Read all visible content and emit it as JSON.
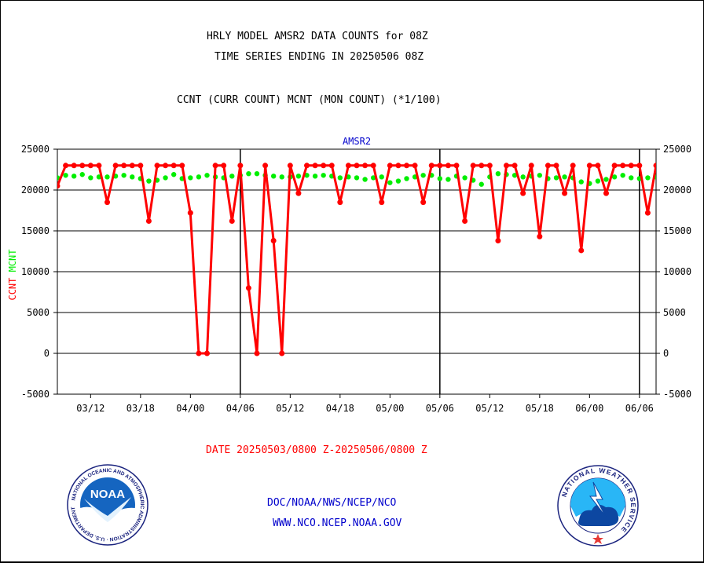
{
  "header": {
    "title1": "HRLY MODEL AMSR2 DATA COUNTS for 08Z",
    "title2": "TIME SERIES ENDING IN 20250506 08Z",
    "subtitle": "CCNT (CURR COUNT) MCNT (MON COUNT) (*1/100)"
  },
  "footer": {
    "date_range": "DATE 20250503/0800 Z-20250506/0800 Z",
    "org_path": "DOC/NOAA/NWS/NCEP/NCO",
    "website": "WWW.NCO.NCEP.NOAA.GOV"
  },
  "logos": {
    "noaa_text": "NOAA",
    "noaa_ring": "NATIONAL OCEANIC AND ATMOSPHERIC ADMINISTRATION · U.S. DEPARTMENT OF COMMERCE ·",
    "nws_ring": "NATIONAL WEATHER SERVICE"
  },
  "colors": {
    "ccnt": "#ff0000",
    "mcnt": "#00ee00",
    "label_blue": "#0000cc",
    "date_red": "#ff0000"
  },
  "chart_data": {
    "type": "line",
    "title": "AMSR2",
    "ylabel_series": [
      "CCNT",
      "MCNT"
    ],
    "ylim": [
      -5000,
      25000
    ],
    "yticks": [
      -5000,
      0,
      5000,
      10000,
      15000,
      20000,
      25000
    ],
    "grid": "horizontal",
    "x_index_range": [
      0,
      72
    ],
    "xtick_labels": [
      {
        "label": "03/12",
        "i": 4
      },
      {
        "label": "03/18",
        "i": 10
      },
      {
        "label": "04/00",
        "i": 16
      },
      {
        "label": "04/06",
        "i": 22
      },
      {
        "label": "05/12",
        "i": 28
      },
      {
        "label": "04/18",
        "i": 34
      },
      {
        "label": "05/00",
        "i": 40
      },
      {
        "label": "05/06",
        "i": 46
      },
      {
        "label": "05/12",
        "i": 52
      },
      {
        "label": "05/18",
        "i": 58
      },
      {
        "label": "06/00",
        "i": 64
      },
      {
        "label": "06/06",
        "i": 70
      }
    ],
    "day_boundaries": [
      22,
      46,
      70
    ],
    "series": [
      {
        "name": "CCNT",
        "values": [
          20500,
          23000,
          23000,
          23000,
          23000,
          23000,
          18500,
          23000,
          23000,
          23000,
          23000,
          16200,
          23000,
          23000,
          23000,
          23000,
          17200,
          0,
          0,
          23000,
          23000,
          16200,
          23000,
          8000,
          0,
          23000,
          13800,
          0,
          23000,
          19600,
          23000,
          23000,
          23000,
          23000,
          18500,
          23000,
          23000,
          23000,
          23000,
          18500,
          23000,
          23000,
          23000,
          23000,
          18500,
          23000,
          23000,
          23000,
          23000,
          16200,
          23000,
          23000,
          23000,
          13800,
          23000,
          23000,
          19600,
          23000,
          14300,
          23000,
          23000,
          19600,
          23000,
          12600,
          23000,
          23000,
          19600,
          23000,
          23000,
          23000,
          23000,
          17200,
          23000
        ]
      },
      {
        "name": "MCNT",
        "values": [
          21500,
          21800,
          21700,
          21900,
          21500,
          21600,
          21600,
          21700,
          21800,
          21600,
          21400,
          21100,
          21200,
          21500,
          21900,
          21400,
          21500,
          21600,
          21800,
          21600,
          21500,
          21700,
          21800,
          22000,
          22000,
          21800,
          21700,
          21600,
          21600,
          21700,
          21800,
          21700,
          21800,
          21700,
          21500,
          21600,
          21500,
          21300,
          21500,
          21600,
          20900,
          21100,
          21400,
          21600,
          21800,
          21800,
          21400,
          21300,
          21700,
          21500,
          21200,
          20700,
          21600,
          22000,
          21900,
          21800,
          21600,
          21700,
          21800,
          21400,
          21500,
          21600,
          21500,
          21000,
          20800,
          21100,
          21300,
          21600,
          21800,
          21500,
          21400,
          21500,
          21600
        ]
      }
    ]
  }
}
